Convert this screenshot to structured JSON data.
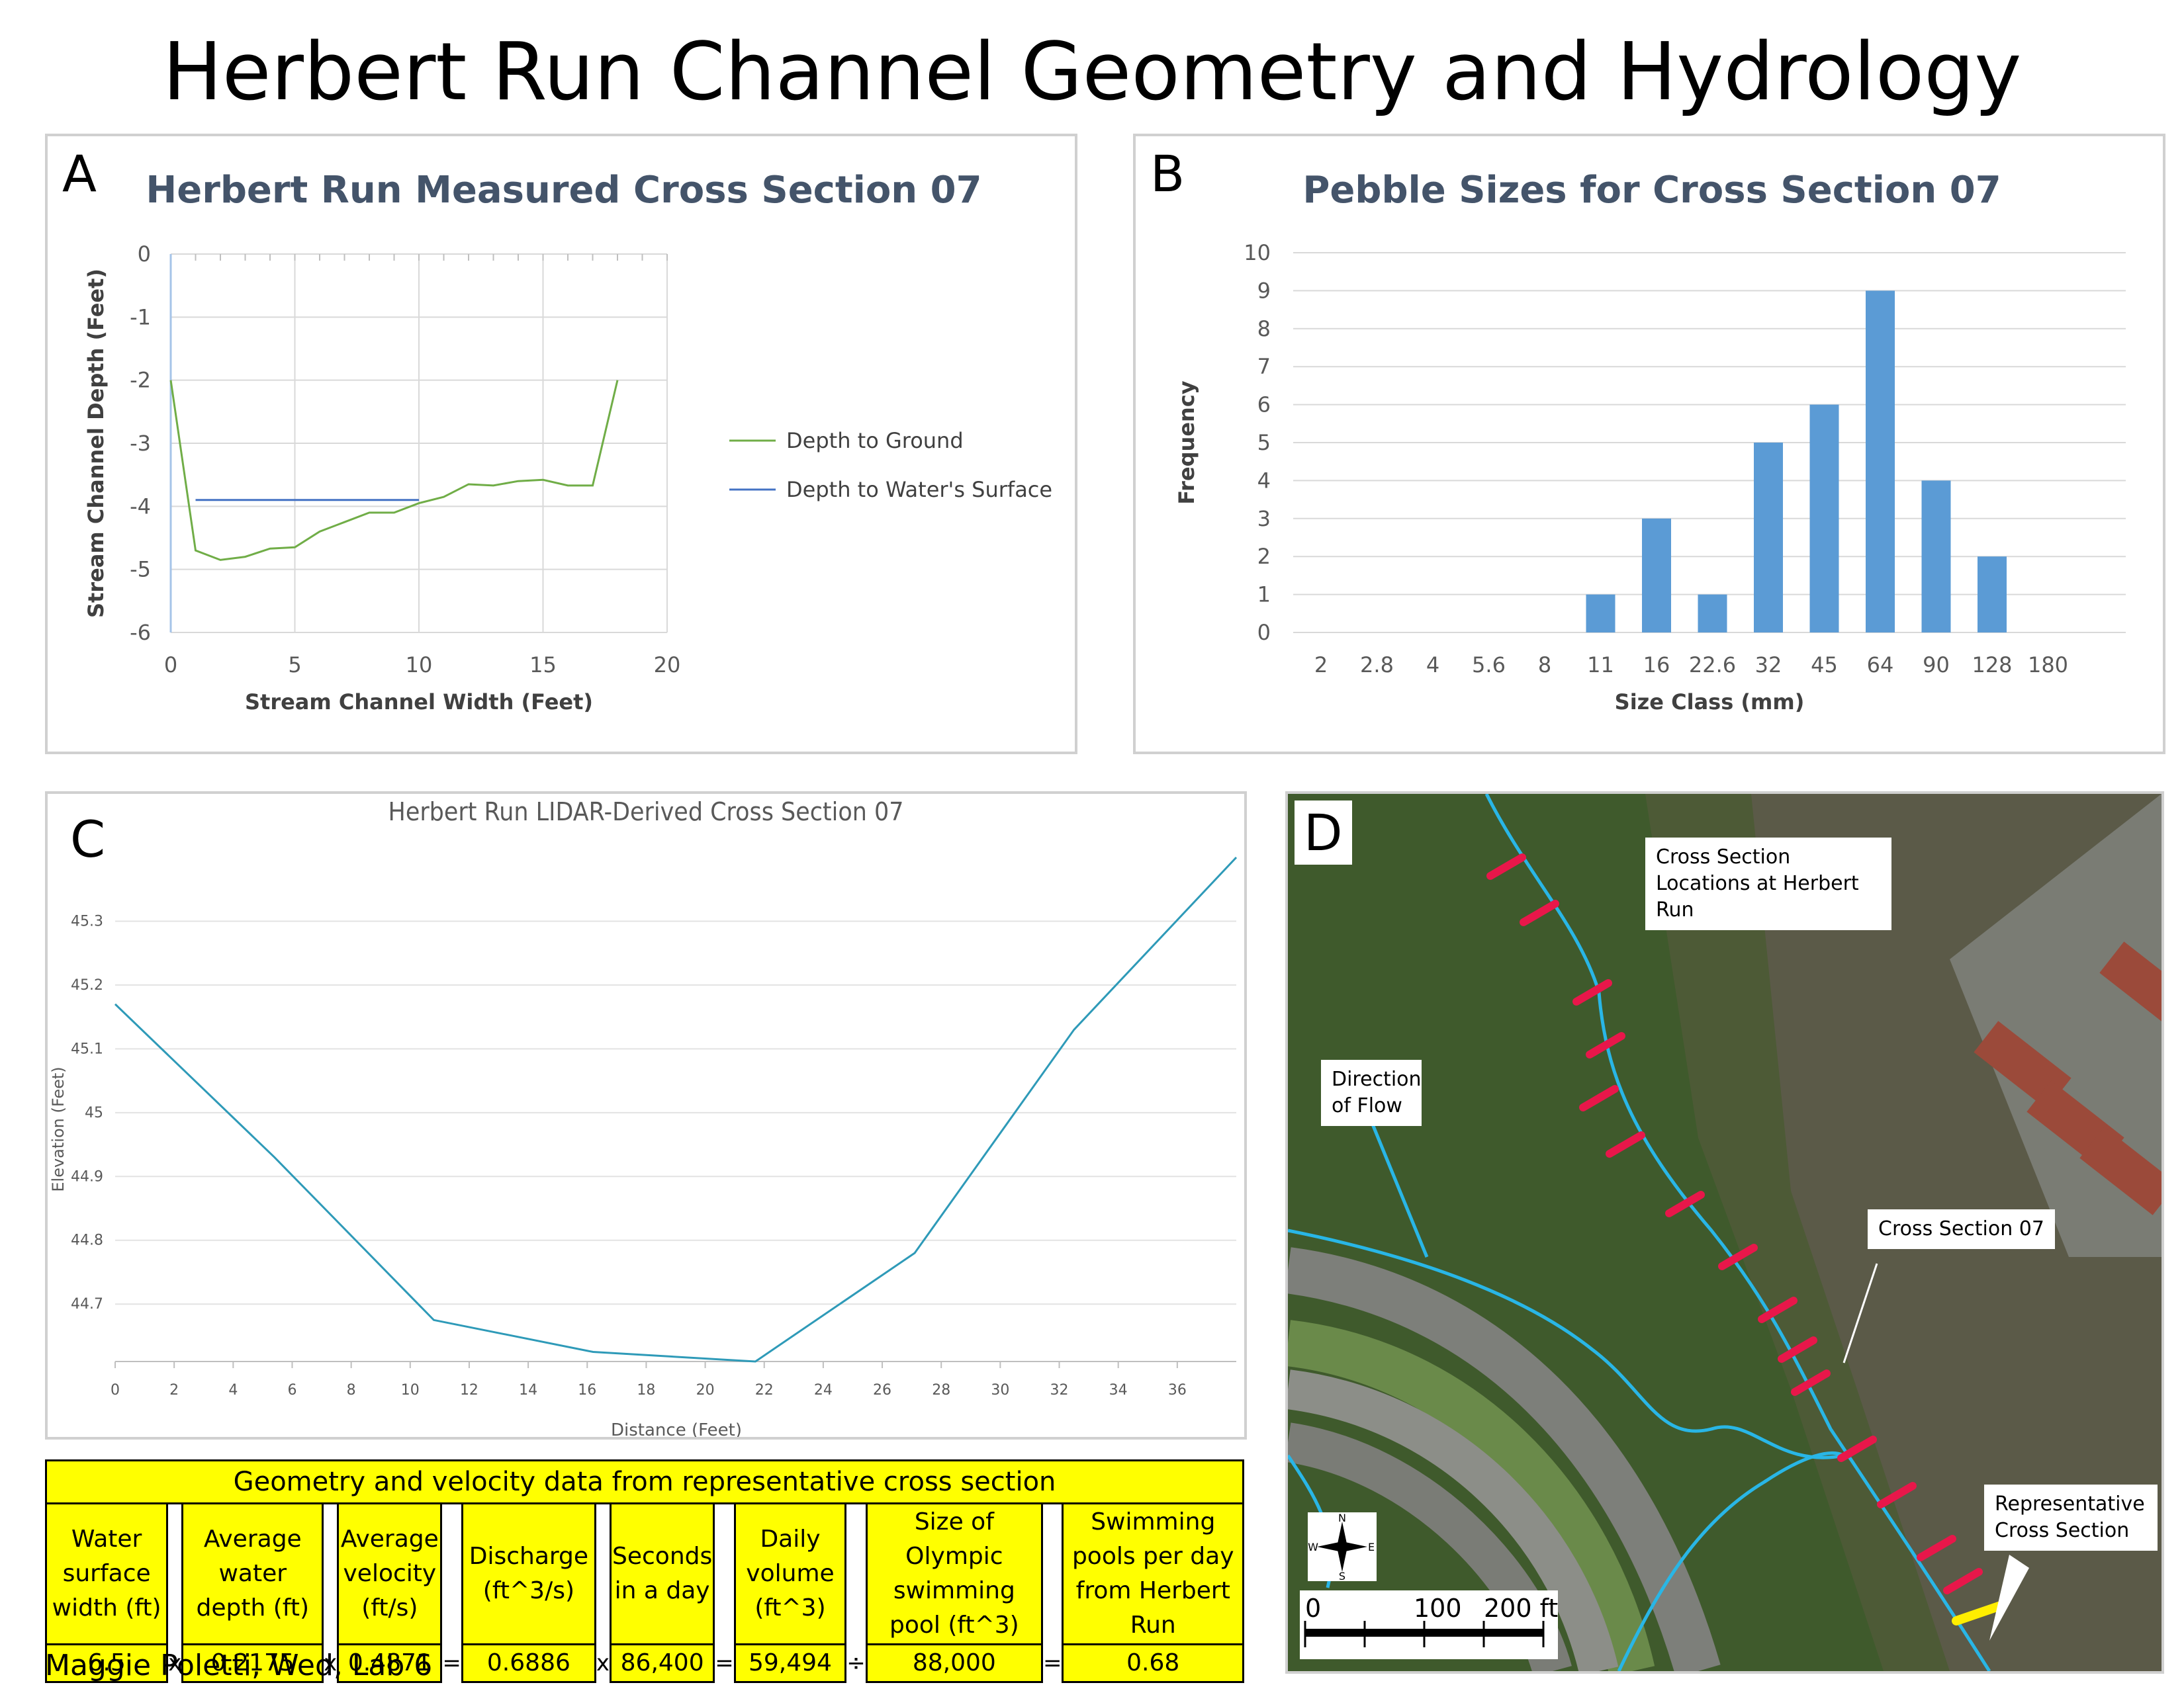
{
  "title": "Herbert Run Channel Geometry and Hydrology",
  "panels": {
    "a": {
      "letter": "A"
    },
    "b": {
      "letter": "B"
    },
    "c": {
      "letter": "C"
    },
    "d": {
      "letter": "D"
    }
  },
  "chart_data": [
    {
      "id": "A",
      "type": "line",
      "title": "Herbert Run Measured Cross Section 07",
      "xlabel": "Stream Channel Width (Feet)",
      "ylabel": "Stream Channel Depth (Feet)",
      "xlim": [
        0,
        20
      ],
      "ylim": [
        -6,
        0
      ],
      "xticks": [
        "0",
        "5",
        "10",
        "15",
        "20"
      ],
      "yticks": [
        "0",
        "-1",
        "-2",
        "-3",
        "-4",
        "-5",
        "-6"
      ],
      "grid": true,
      "legend": "right",
      "series": [
        {
          "name": "Depth to Ground",
          "color": "#70ad47",
          "x": [
            0,
            1,
            2,
            3,
            4,
            5,
            6,
            7,
            8,
            9,
            10,
            11,
            12,
            13,
            14,
            15,
            16,
            17,
            18
          ],
          "y": [
            -2,
            -4.7,
            -4.85,
            -4.8,
            -4.67,
            -4.65,
            -4.4,
            -4.25,
            -4.1,
            -4.1,
            -3.95,
            -3.85,
            -3.65,
            -3.67,
            -3.6,
            -3.58,
            -3.67,
            -3.67,
            -2
          ]
        },
        {
          "name": "Depth to Water's Surface",
          "color": "#4472c4",
          "x": [
            1,
            10
          ],
          "y": [
            -3.9,
            -3.9
          ]
        }
      ]
    },
    {
      "id": "B",
      "type": "bar",
      "title": "Pebble Sizes for Cross Section 07",
      "xlabel": "Size Class (mm)",
      "ylabel": "Frequency",
      "categories": [
        "2",
        "2.8",
        "4",
        "5.6",
        "8",
        "11",
        "16",
        "22.6",
        "32",
        "45",
        "64",
        "90",
        "128",
        "180"
      ],
      "values": [
        0,
        0,
        0,
        0,
        0,
        1,
        3,
        1,
        5,
        6,
        9,
        4,
        2,
        0
      ],
      "yticks": [
        "0",
        "1",
        "2",
        "3",
        "4",
        "5",
        "6",
        "7",
        "8",
        "9",
        "10"
      ],
      "ylim": [
        0,
        10
      ],
      "grid": true,
      "color": "#5b9bd5"
    },
    {
      "id": "C",
      "type": "line",
      "title": "Herbert Run LIDAR-Derived Cross Section 07",
      "xlabel": "Distance (Feet)",
      "ylabel": "Elevation (Feet)",
      "xticks": [
        "0",
        "2",
        "4",
        "6",
        "8",
        "10",
        "12",
        "14",
        "16",
        "18",
        "20",
        "22",
        "24",
        "26",
        "28",
        "30",
        "32",
        "34",
        "36"
      ],
      "yticks": [
        "44.7",
        "44.8",
        "44.9",
        "45",
        "45.1",
        "45.2",
        "45.3"
      ],
      "xlim": [
        0,
        38
      ],
      "ylim": [
        44.61,
        45.4
      ],
      "grid": true,
      "series": [
        {
          "name": "",
          "color": "#2e9ab8",
          "x": [
            0,
            5.4,
            10.8,
            16.2,
            21.7,
            27.1,
            32.5,
            38
          ],
          "y": [
            45.17,
            44.93,
            44.675,
            44.625,
            44.61,
            44.78,
            45.13,
            45.4
          ]
        }
      ]
    }
  ],
  "table": {
    "header": "Geometry and velocity data from representative cross section",
    "columns": [
      {
        "label": "Water surface width (ft)",
        "value": "6.5"
      },
      {
        "label": "Average water depth (ft)",
        "value": "0.2175"
      },
      {
        "label": "Average velocity (ft/s)",
        "value": "0.4871"
      },
      {
        "label": "Discharge (ft^3/s)",
        "value": "0.6886"
      },
      {
        "label": "Seconds in a day",
        "value": "86,400"
      },
      {
        "label": "Daily volume (ft^3)",
        "value": "59,494"
      },
      {
        "label": "Size of Olympic swimming pool (ft^3)",
        "value": "88,000"
      },
      {
        "label": "Swimming pools per day from Herbert Run",
        "value": "0.68"
      }
    ],
    "operators": [
      "x",
      "x",
      "=",
      "x",
      "=",
      "÷",
      "="
    ]
  },
  "footer": "Maggie Poletti, Wed, Lab 6",
  "map": {
    "labels": {
      "cross_section_locations": "Cross Section Locations at Herbert Run",
      "direction_of_flow": "Direction of Flow",
      "cross_section_07": "Cross Section 07",
      "representative": "Representative Cross Section"
    },
    "compass": {
      "n": "N",
      "s": "S",
      "e": "E",
      "w": "W"
    },
    "scale": {
      "zero": "0",
      "mid": "100",
      "end": "200 ft"
    },
    "colors": {
      "stream": "#29b6e6",
      "marker": "#e8174a",
      "highlight": "#ffee00"
    }
  }
}
